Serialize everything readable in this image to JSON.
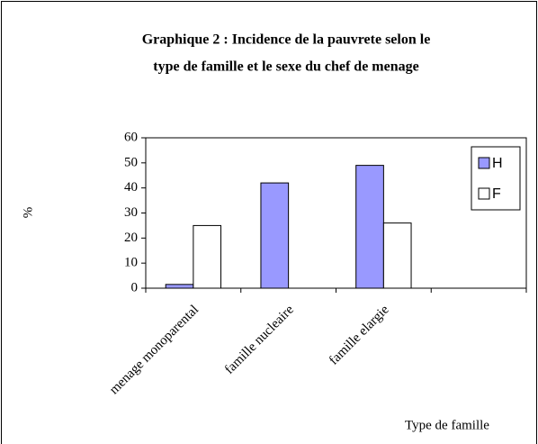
{
  "chart_data": {
    "type": "bar",
    "title": [
      "Graphique 2 : Incidence de la pauvrete selon le",
      "type de famille et le sexe du chef de menage"
    ],
    "categories": [
      "menage monoparental",
      "famille nucleaire",
      "famille elargie",
      null
    ],
    "series": [
      {
        "name": "H",
        "color": "#9999ff",
        "values": [
          1.5,
          42,
          49,
          null
        ]
      },
      {
        "name": "F",
        "color": "#ffffff",
        "values": [
          25,
          null,
          26,
          null
        ]
      }
    ],
    "ylim": [
      0,
      60
    ],
    "yticks": [
      0,
      10,
      20,
      30,
      40,
      50,
      60
    ],
    "y_label": "%",
    "x_label": "Type de famille",
    "legend": "upper right",
    "grid": false
  }
}
